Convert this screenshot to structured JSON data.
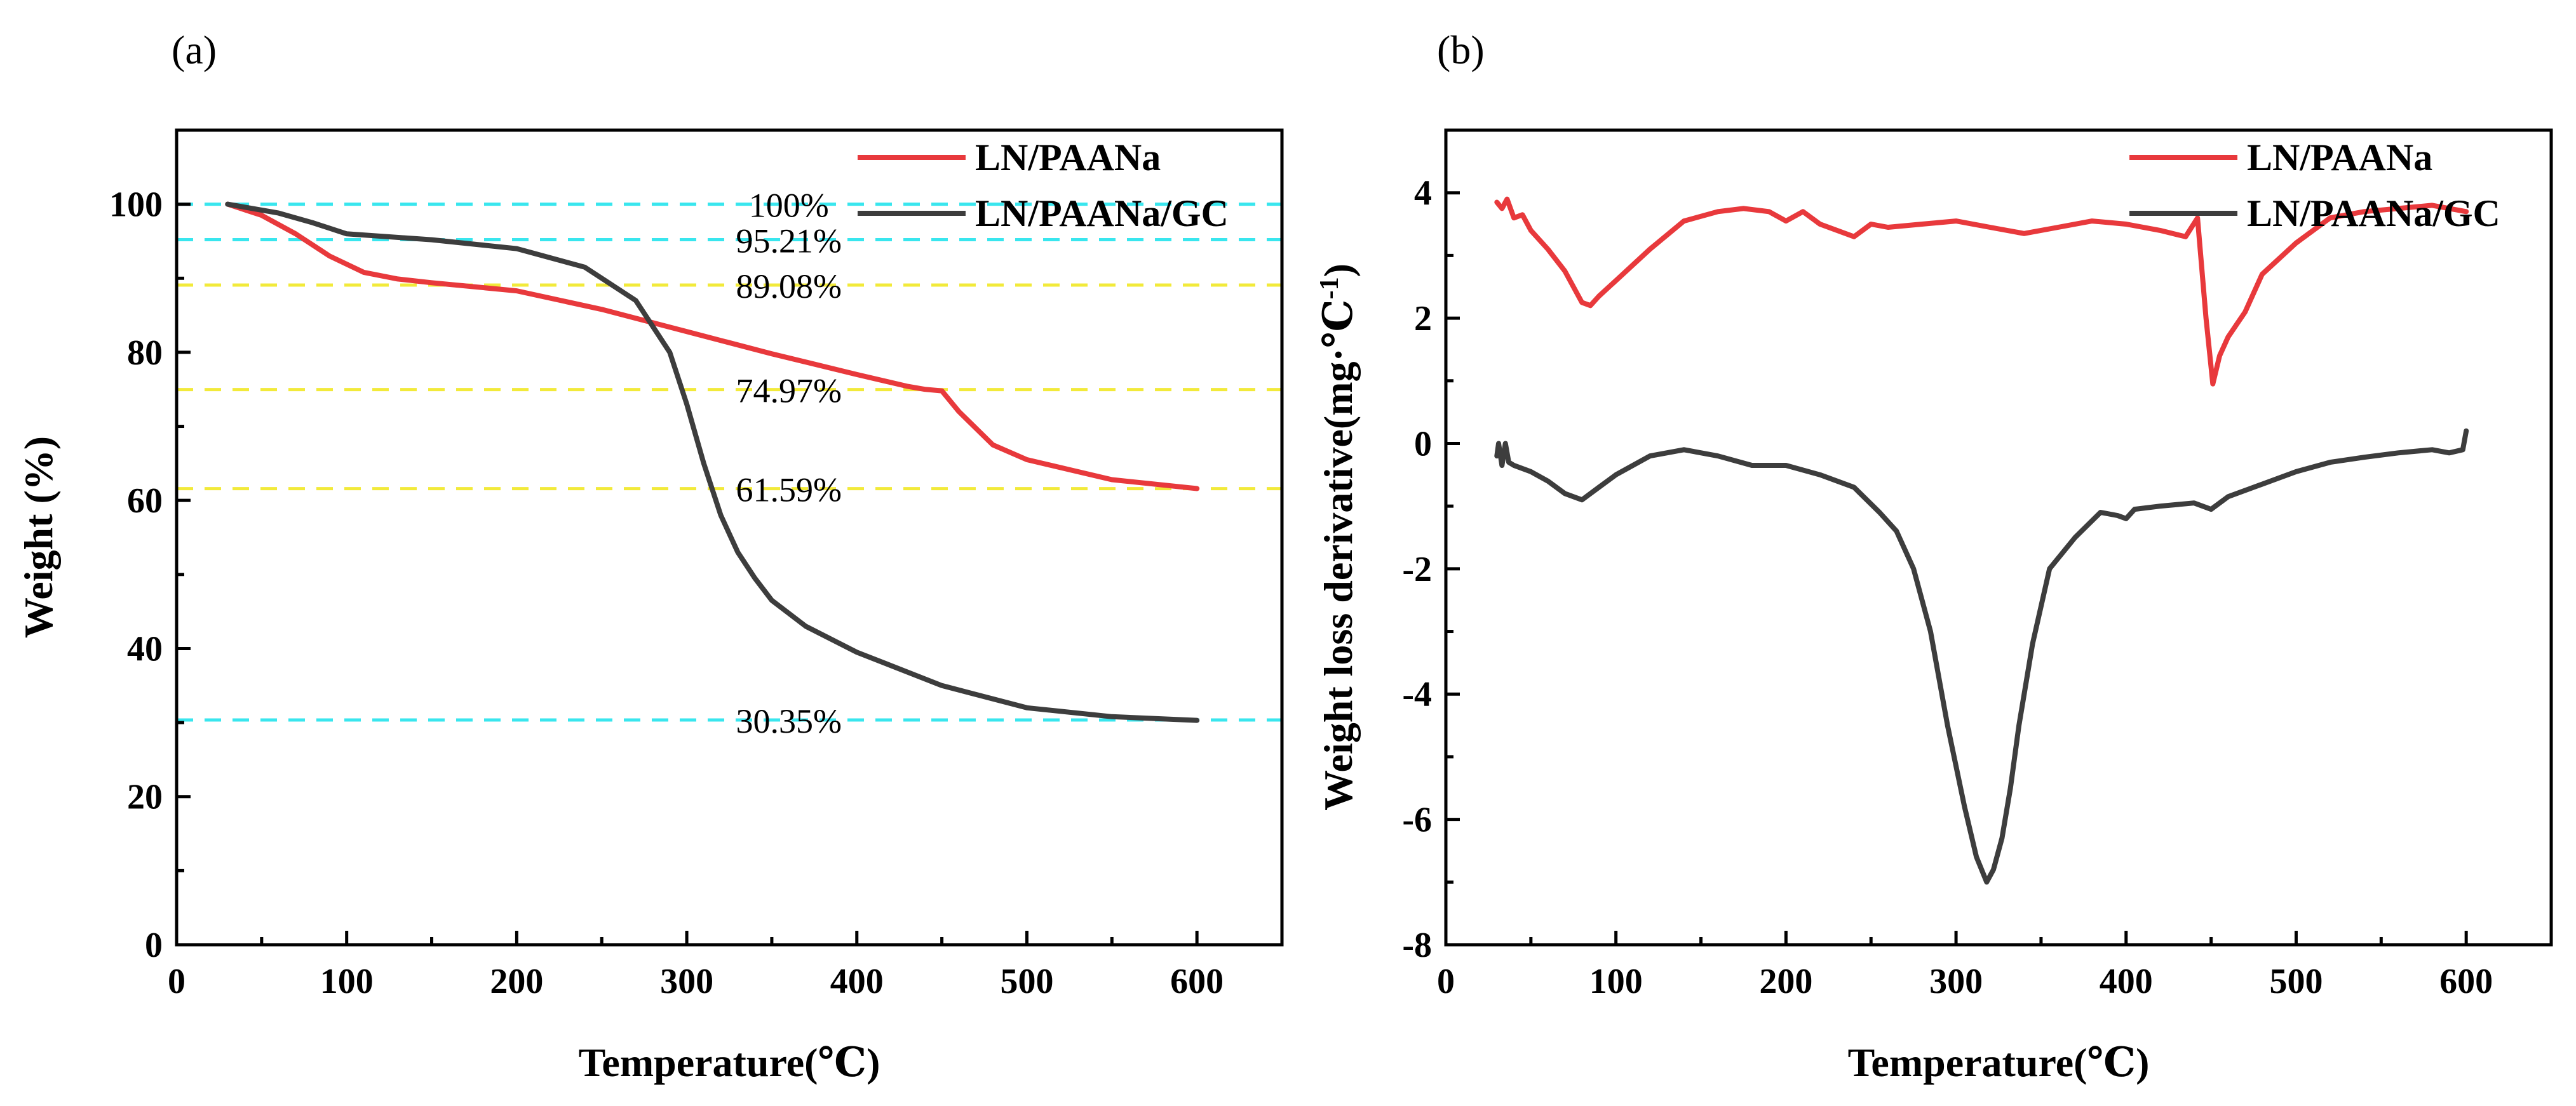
{
  "colors": {
    "red": "#e8393c",
    "dark": "#3d3d3d",
    "cyan": "#39e6ee",
    "yellow": "#f2ea3a"
  },
  "chart_data": [
    {
      "panel": "(a)",
      "type": "line",
      "xlabel": "Temperature(℃)",
      "ylabel": "Weight (%)",
      "xlim": [
        0,
        650
      ],
      "ylim": [
        0,
        110
      ],
      "xticks": [
        0,
        100,
        200,
        300,
        400,
        500,
        600
      ],
      "yticks": [
        0,
        20,
        40,
        60,
        80,
        100
      ],
      "legend_position": "top-right",
      "reference_lines": [
        {
          "y": 100,
          "label": "100%",
          "color": "cyan"
        },
        {
          "y": 95.21,
          "label": "95.21%",
          "color": "cyan"
        },
        {
          "y": 89.08,
          "label": "89.08%",
          "color": "yellow"
        },
        {
          "y": 74.97,
          "label": "74.97%",
          "color": "yellow"
        },
        {
          "y": 61.59,
          "label": "61.59%",
          "color": "yellow"
        },
        {
          "y": 30.35,
          "label": "30.35%",
          "color": "cyan"
        }
      ],
      "series": [
        {
          "name": "LN/PAANa",
          "color": "red",
          "x": [
            30,
            50,
            70,
            90,
            110,
            130,
            150,
            200,
            250,
            300,
            350,
            400,
            430,
            440,
            450,
            460,
            480,
            500,
            550,
            600
          ],
          "y": [
            100,
            98.5,
            96,
            93,
            90.8,
            89.9,
            89.4,
            88.3,
            85.8,
            82.8,
            79.8,
            77,
            75.4,
            75,
            74.8,
            72,
            67.5,
            65.5,
            62.8,
            61.6
          ]
        },
        {
          "name": "LN/PAANa/GC",
          "color": "dark",
          "x": [
            30,
            60,
            80,
            100,
            150,
            200,
            240,
            270,
            290,
            300,
            310,
            320,
            330,
            340,
            350,
            370,
            400,
            450,
            500,
            550,
            600
          ],
          "y": [
            100,
            98.8,
            97.5,
            96,
            95.2,
            94,
            91.5,
            87,
            80,
            73,
            65,
            58,
            53,
            49.5,
            46.5,
            43,
            39.5,
            35,
            32,
            30.8,
            30.3
          ]
        }
      ]
    },
    {
      "panel": "(b)",
      "type": "line",
      "xlabel": "Temperature(℃)",
      "ylabel": "Weight loss derivative(mg·℃",
      "ylabel_sup": "-1",
      "ylabel_end": ")",
      "xlim": [
        0,
        650
      ],
      "ylim": [
        -8,
        5
      ],
      "xticks": [
        0,
        100,
        200,
        300,
        400,
        500,
        600
      ],
      "yticks": [
        -8,
        -6,
        -4,
        -2,
        0,
        2,
        4
      ],
      "legend_position": "top-right",
      "series": [
        {
          "name": "LN/PAANa",
          "color": "red",
          "x": [
            30,
            33,
            36,
            40,
            45,
            50,
            60,
            70,
            80,
            85,
            90,
            100,
            120,
            140,
            160,
            175,
            190,
            200,
            210,
            220,
            230,
            240,
            250,
            260,
            280,
            300,
            320,
            340,
            360,
            380,
            400,
            420,
            435,
            442,
            447,
            451,
            455,
            460,
            470,
            480,
            500,
            520,
            540,
            560,
            580,
            600
          ],
          "y": [
            3.85,
            3.75,
            3.9,
            3.6,
            3.65,
            3.4,
            3.1,
            2.75,
            2.25,
            2.2,
            2.35,
            2.6,
            3.1,
            3.55,
            3.7,
            3.75,
            3.7,
            3.55,
            3.7,
            3.5,
            3.4,
            3.3,
            3.5,
            3.45,
            3.5,
            3.55,
            3.45,
            3.35,
            3.45,
            3.55,
            3.5,
            3.4,
            3.3,
            3.6,
            2.0,
            0.95,
            1.4,
            1.7,
            2.1,
            2.7,
            3.2,
            3.6,
            3.7,
            3.75,
            3.8,
            3.7
          ]
        },
        {
          "name": "LN/PAANa/GC",
          "color": "dark",
          "x": [
            30,
            31,
            33,
            35,
            37,
            40,
            50,
            60,
            70,
            80,
            85,
            90,
            100,
            120,
            140,
            160,
            180,
            200,
            220,
            240,
            255,
            265,
            275,
            285,
            295,
            305,
            312,
            318,
            322,
            327,
            332,
            337,
            345,
            355,
            370,
            385,
            395,
            400,
            405,
            420,
            440,
            450,
            460,
            480,
            500,
            520,
            540,
            560,
            580,
            590,
            598,
            600
          ],
          "y": [
            -0.2,
            0,
            -0.35,
            0,
            -0.3,
            -0.35,
            -0.45,
            -0.6,
            -0.8,
            -0.9,
            -0.8,
            -0.7,
            -0.5,
            -0.2,
            -0.1,
            -0.2,
            -0.35,
            -0.35,
            -0.5,
            -0.7,
            -1.1,
            -1.4,
            -2.0,
            -3.0,
            -4.5,
            -5.8,
            -6.6,
            -7.0,
            -6.8,
            -6.3,
            -5.5,
            -4.5,
            -3.2,
            -2.0,
            -1.5,
            -1.1,
            -1.15,
            -1.2,
            -1.05,
            -1.0,
            -0.95,
            -1.05,
            -0.85,
            -0.65,
            -0.45,
            -0.3,
            -0.22,
            -0.15,
            -0.1,
            -0.15,
            -0.1,
            0.2
          ]
        }
      ]
    }
  ]
}
